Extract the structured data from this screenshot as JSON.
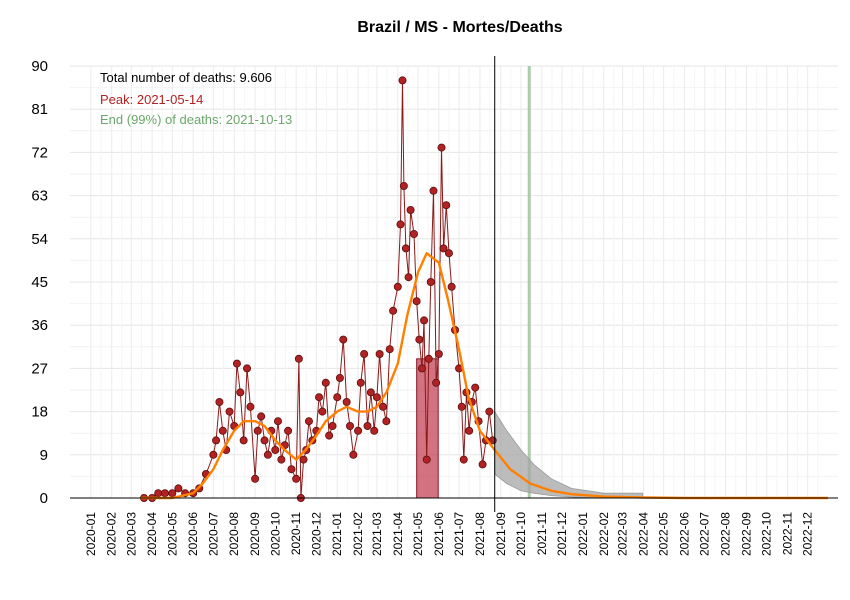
{
  "chart_data": {
    "type": "line",
    "title": "Brazil / MS - Mortes/Deaths",
    "xlabel": "",
    "ylabel": "",
    "ylim": [
      0,
      90
    ],
    "yticks": [
      0,
      9,
      18,
      27,
      36,
      45,
      54,
      63,
      72,
      81,
      90
    ],
    "xlim": [
      "2019-12-01",
      "2023-01-15"
    ],
    "x_tick_labels": [
      "2020-01",
      "2020-02",
      "2020-03",
      "2020-04",
      "2020-05",
      "2020-06",
      "2020-07",
      "2020-08",
      "2020-09",
      "2020-10",
      "2020-11",
      "2020-12",
      "2021-01",
      "2021-02",
      "2021-03",
      "2021-04",
      "2021-05",
      "2021-06",
      "2021-07",
      "2021-08",
      "2021-09",
      "2021-10",
      "2021-11",
      "2021-12",
      "2022-01",
      "2022-02",
      "2022-03",
      "2022-04",
      "2022-05",
      "2022-06",
      "2022-07",
      "2022-08",
      "2022-09",
      "2022-10",
      "2022-11",
      "2022-12"
    ],
    "grid": true,
    "annotations": {
      "total": "Total number of deaths: 9.606",
      "peak": "Peak: 2021-05-14",
      "end": "End (99%) of deaths: 2021-10-13"
    },
    "current_date": "2021-08-23",
    "peak_band": [
      "2021-04-29",
      "2021-05-31"
    ],
    "end_band": [
      "2021-10-11",
      "2021-10-15"
    ],
    "colors": {
      "observed_points": "#b22222",
      "fitted_line": "#ff7f00",
      "forecast_band": "#a6a6a6",
      "peak_band": "#c0384b",
      "end_band": "#8fbc8f",
      "annot_total": "#000000",
      "annot_peak": "#b22222",
      "annot_end": "#6aa86a"
    },
    "series": [
      {
        "key": "observed",
        "points": [
          [
            "2020-03-20",
            0
          ],
          [
            "2020-04-01",
            0
          ],
          [
            "2020-04-10",
            1
          ],
          [
            "2020-04-20",
            1
          ],
          [
            "2020-05-01",
            1
          ],
          [
            "2020-05-10",
            2
          ],
          [
            "2020-05-20",
            1
          ],
          [
            "2020-06-01",
            1
          ],
          [
            "2020-06-10",
            2
          ],
          [
            "2020-06-20",
            5
          ],
          [
            "2020-07-01",
            9
          ],
          [
            "2020-07-05",
            12
          ],
          [
            "2020-07-10",
            20
          ],
          [
            "2020-07-15",
            14
          ],
          [
            "2020-07-20",
            10
          ],
          [
            "2020-07-25",
            18
          ],
          [
            "2020-08-01",
            15
          ],
          [
            "2020-08-05",
            28
          ],
          [
            "2020-08-10",
            22
          ],
          [
            "2020-08-15",
            12
          ],
          [
            "2020-08-20",
            27
          ],
          [
            "2020-08-25",
            19
          ],
          [
            "2020-09-01",
            4
          ],
          [
            "2020-09-05",
            14
          ],
          [
            "2020-09-10",
            17
          ],
          [
            "2020-09-15",
            12
          ],
          [
            "2020-09-20",
            9
          ],
          [
            "2020-09-25",
            14
          ],
          [
            "2020-10-01",
            10
          ],
          [
            "2020-10-05",
            16
          ],
          [
            "2020-10-10",
            8
          ],
          [
            "2020-10-15",
            11
          ],
          [
            "2020-10-20",
            14
          ],
          [
            "2020-10-25",
            6
          ],
          [
            "2020-11-01",
            4
          ],
          [
            "2020-11-05",
            29
          ],
          [
            "2020-11-08",
            0
          ],
          [
            "2020-11-12",
            8
          ],
          [
            "2020-11-16",
            10
          ],
          [
            "2020-11-20",
            16
          ],
          [
            "2020-11-25",
            12
          ],
          [
            "2020-12-01",
            14
          ],
          [
            "2020-12-05",
            21
          ],
          [
            "2020-12-10",
            18
          ],
          [
            "2020-12-15",
            24
          ],
          [
            "2020-12-20",
            13
          ],
          [
            "2020-12-25",
            15
          ],
          [
            "2021-01-01",
            21
          ],
          [
            "2021-01-05",
            25
          ],
          [
            "2021-01-10",
            33
          ],
          [
            "2021-01-15",
            20
          ],
          [
            "2021-01-20",
            15
          ],
          [
            "2021-01-25",
            9
          ],
          [
            "2021-02-01",
            14
          ],
          [
            "2021-02-05",
            24
          ],
          [
            "2021-02-10",
            30
          ],
          [
            "2021-02-15",
            15
          ],
          [
            "2021-02-20",
            22
          ],
          [
            "2021-02-25",
            14
          ],
          [
            "2021-03-01",
            21
          ],
          [
            "2021-03-05",
            30
          ],
          [
            "2021-03-10",
            19
          ],
          [
            "2021-03-15",
            16
          ],
          [
            "2021-03-20",
            31
          ],
          [
            "2021-03-25",
            39
          ],
          [
            "2021-04-01",
            44
          ],
          [
            "2021-04-05",
            57
          ],
          [
            "2021-04-08",
            87
          ],
          [
            "2021-04-10",
            65
          ],
          [
            "2021-04-13",
            52
          ],
          [
            "2021-04-17",
            46
          ],
          [
            "2021-04-20",
            60
          ],
          [
            "2021-04-25",
            55
          ],
          [
            "2021-04-29",
            41
          ],
          [
            "2021-05-03",
            33
          ],
          [
            "2021-05-07",
            27
          ],
          [
            "2021-05-10",
            37
          ],
          [
            "2021-05-14",
            8
          ],
          [
            "2021-05-17",
            29
          ],
          [
            "2021-05-20",
            45
          ],
          [
            "2021-05-24",
            64
          ],
          [
            "2021-05-28",
            24
          ],
          [
            "2021-06-01",
            30
          ],
          [
            "2021-06-05",
            73
          ],
          [
            "2021-06-08",
            52
          ],
          [
            "2021-06-12",
            61
          ],
          [
            "2021-06-16",
            51
          ],
          [
            "2021-06-20",
            44
          ],
          [
            "2021-06-25",
            35
          ],
          [
            "2021-07-01",
            27
          ],
          [
            "2021-07-05",
            19
          ],
          [
            "2021-07-08",
            8
          ],
          [
            "2021-07-12",
            22
          ],
          [
            "2021-07-16",
            14
          ],
          [
            "2021-07-20",
            20
          ],
          [
            "2021-07-25",
            23
          ],
          [
            "2021-07-30",
            16
          ],
          [
            "2021-08-05",
            7
          ],
          [
            "2021-08-10",
            12
          ],
          [
            "2021-08-15",
            18
          ],
          [
            "2021-08-20",
            12
          ]
        ]
      },
      {
        "key": "fitted",
        "points": [
          [
            "2020-03-15",
            0
          ],
          [
            "2020-05-01",
            0
          ],
          [
            "2020-06-01",
            1
          ],
          [
            "2020-06-15",
            3
          ],
          [
            "2020-07-01",
            6
          ],
          [
            "2020-07-15",
            10
          ],
          [
            "2020-08-01",
            14
          ],
          [
            "2020-08-15",
            16
          ],
          [
            "2020-09-01",
            16
          ],
          [
            "2020-09-15",
            15
          ],
          [
            "2020-10-01",
            12
          ],
          [
            "2020-10-15",
            10
          ],
          [
            "2020-11-01",
            8
          ],
          [
            "2020-11-15",
            10
          ],
          [
            "2020-12-01",
            13
          ],
          [
            "2020-12-15",
            16
          ],
          [
            "2021-01-01",
            18
          ],
          [
            "2021-01-15",
            19
          ],
          [
            "2021-02-01",
            18
          ],
          [
            "2021-02-15",
            18
          ],
          [
            "2021-03-01",
            19
          ],
          [
            "2021-03-15",
            22
          ],
          [
            "2021-04-01",
            28
          ],
          [
            "2021-04-15",
            38
          ],
          [
            "2021-05-01",
            47
          ],
          [
            "2021-05-14",
            51
          ],
          [
            "2021-06-01",
            49
          ],
          [
            "2021-06-15",
            41
          ],
          [
            "2021-07-01",
            31
          ],
          [
            "2021-07-15",
            21
          ],
          [
            "2021-08-01",
            14
          ],
          [
            "2021-08-23",
            10
          ],
          [
            "2021-09-15",
            6
          ],
          [
            "2021-10-15",
            3
          ],
          [
            "2021-11-15",
            1.5
          ],
          [
            "2021-12-15",
            0.8
          ],
          [
            "2022-02-01",
            0.3
          ],
          [
            "2022-04-01",
            0.1
          ],
          [
            "2022-06-01",
            0
          ],
          [
            "2022-12-31",
            0
          ]
        ]
      },
      {
        "key": "forecast_band",
        "upper": [
          [
            "2021-08-23",
            18
          ],
          [
            "2021-09-10",
            14
          ],
          [
            "2021-10-01",
            10
          ],
          [
            "2021-10-20",
            7
          ],
          [
            "2021-11-15",
            4
          ],
          [
            "2021-12-15",
            2
          ],
          [
            "2022-02-01",
            1
          ],
          [
            "2022-03-31",
            1
          ]
        ],
        "lower": [
          [
            "2021-08-23",
            5
          ],
          [
            "2021-09-10",
            3
          ],
          [
            "2021-10-01",
            1.5
          ],
          [
            "2021-10-20",
            1
          ],
          [
            "2021-11-15",
            0.5
          ],
          [
            "2021-12-15",
            0.2
          ],
          [
            "2022-02-01",
            0
          ],
          [
            "2022-03-31",
            0
          ]
        ]
      }
    ]
  }
}
